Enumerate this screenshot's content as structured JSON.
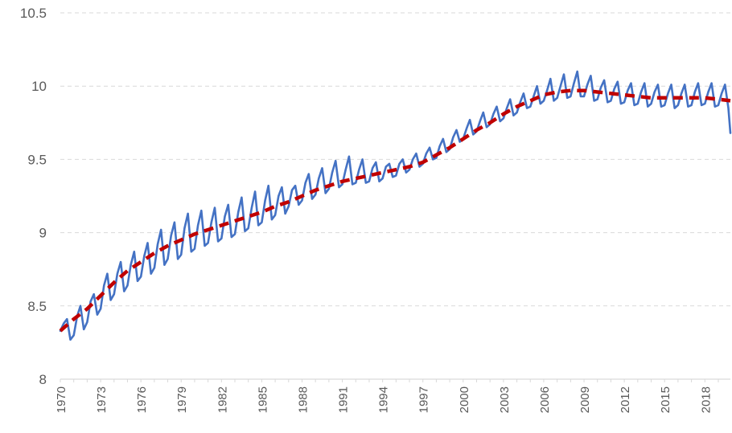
{
  "chart_data": {
    "type": "line",
    "title": "",
    "xlabel": "",
    "ylabel": "",
    "xlim": [
      1970,
      2019.9
    ],
    "ylim": [
      8,
      10.5
    ],
    "grid": "horizontal-dashed",
    "legend": "none",
    "yticks": [
      "8",
      "8.5",
      "9",
      "9.5",
      "10",
      "10.5"
    ],
    "xticks": [
      "1970",
      "1973",
      "1976",
      "1979",
      "1982",
      "1985",
      "1988",
      "1991",
      "1994",
      "1997",
      "2000",
      "2003",
      "2006",
      "2009",
      "2012",
      "2015",
      "2018"
    ],
    "series": [
      {
        "style": "solid",
        "color": "#4472C4",
        "x": [
          1970.0,
          1970.25,
          1970.5,
          1970.75,
          1971.0,
          1971.25,
          1971.5,
          1971.75,
          1972.0,
          1972.25,
          1972.5,
          1972.75,
          1973.0,
          1973.25,
          1973.5,
          1973.75,
          1974.0,
          1974.25,
          1974.5,
          1974.75,
          1975.0,
          1975.25,
          1975.5,
          1975.75,
          1976.0,
          1976.25,
          1976.5,
          1976.75,
          1977.0,
          1977.25,
          1977.5,
          1977.75,
          1978.0,
          1978.25,
          1978.5,
          1978.75,
          1979.0,
          1979.25,
          1979.5,
          1979.75,
          1980.0,
          1980.25,
          1980.5,
          1980.75,
          1981.0,
          1981.25,
          1981.5,
          1981.75,
          1982.0,
          1982.25,
          1982.5,
          1982.75,
          1983.0,
          1983.25,
          1983.5,
          1983.75,
          1984.0,
          1984.25,
          1984.5,
          1984.75,
          1985.0,
          1985.25,
          1985.5,
          1985.75,
          1986.0,
          1986.25,
          1986.5,
          1986.75,
          1987.0,
          1987.25,
          1987.5,
          1987.75,
          1988.0,
          1988.25,
          1988.5,
          1988.75,
          1989.0,
          1989.25,
          1989.5,
          1989.75,
          1990.0,
          1990.25,
          1990.5,
          1990.75,
          1991.0,
          1991.25,
          1991.5,
          1991.75,
          1992.0,
          1992.25,
          1992.5,
          1992.75,
          1993.0,
          1993.25,
          1993.5,
          1993.75,
          1994.0,
          1994.25,
          1994.5,
          1994.75,
          1995.0,
          1995.25,
          1995.5,
          1995.75,
          1996.0,
          1996.25,
          1996.5,
          1996.75,
          1997.0,
          1997.25,
          1997.5,
          1997.75,
          1998.0,
          1998.25,
          1998.5,
          1998.75,
          1999.0,
          1999.25,
          1999.5,
          1999.75,
          2000.0,
          2000.25,
          2000.5,
          2000.75,
          2001.0,
          2001.25,
          2001.5,
          2001.75,
          2002.0,
          2002.25,
          2002.5,
          2002.75,
          2003.0,
          2003.25,
          2003.5,
          2003.75,
          2004.0,
          2004.25,
          2004.5,
          2004.75,
          2005.0,
          2005.25,
          2005.5,
          2005.75,
          2006.0,
          2006.25,
          2006.5,
          2006.75,
          2007.0,
          2007.25,
          2007.5,
          2007.75,
          2008.0,
          2008.25,
          2008.5,
          2008.75,
          2009.0,
          2009.25,
          2009.5,
          2009.75,
          2010.0,
          2010.25,
          2010.5,
          2010.75,
          2011.0,
          2011.25,
          2011.5,
          2011.75,
          2012.0,
          2012.25,
          2012.5,
          2012.75,
          2013.0,
          2013.25,
          2013.5,
          2013.75,
          2014.0,
          2014.25,
          2014.5,
          2014.75,
          2015.0,
          2015.25,
          2015.5,
          2015.75,
          2016.0,
          2016.25,
          2016.5,
          2016.75,
          2017.0,
          2017.25,
          2017.5,
          2017.75,
          2018.0,
          2018.25,
          2018.5,
          2018.75,
          2019.0,
          2019.25,
          2019.5,
          2019.75,
          2019.9
        ],
        "values": [
          8.33,
          8.38,
          8.41,
          8.27,
          8.3,
          8.43,
          8.5,
          8.34,
          8.39,
          8.53,
          8.58,
          8.44,
          8.48,
          8.64,
          8.72,
          8.54,
          8.58,
          8.72,
          8.8,
          8.6,
          8.64,
          8.78,
          8.87,
          8.67,
          8.7,
          8.84,
          8.93,
          8.72,
          8.76,
          8.92,
          9.02,
          8.78,
          8.82,
          8.98,
          9.07,
          8.82,
          8.85,
          9.03,
          9.13,
          8.87,
          8.89,
          9.05,
          9.15,
          8.91,
          8.93,
          9.07,
          9.17,
          8.94,
          8.96,
          9.11,
          9.19,
          8.97,
          8.99,
          9.14,
          9.24,
          9.01,
          9.03,
          9.17,
          9.28,
          9.05,
          9.07,
          9.22,
          9.32,
          9.09,
          9.12,
          9.25,
          9.31,
          9.13,
          9.18,
          9.29,
          9.32,
          9.19,
          9.22,
          9.34,
          9.4,
          9.23,
          9.26,
          9.37,
          9.44,
          9.27,
          9.3,
          9.41,
          9.49,
          9.31,
          9.33,
          9.43,
          9.52,
          9.33,
          9.34,
          9.43,
          9.5,
          9.34,
          9.35,
          9.44,
          9.48,
          9.35,
          9.37,
          9.45,
          9.47,
          9.38,
          9.39,
          9.47,
          9.5,
          9.41,
          9.43,
          9.5,
          9.54,
          9.45,
          9.47,
          9.54,
          9.58,
          9.5,
          9.51,
          9.59,
          9.64,
          9.55,
          9.57,
          9.65,
          9.7,
          9.62,
          9.64,
          9.71,
          9.77,
          9.67,
          9.69,
          9.76,
          9.82,
          9.72,
          9.74,
          9.81,
          9.86,
          9.76,
          9.78,
          9.85,
          9.91,
          9.8,
          9.82,
          9.89,
          9.95,
          9.85,
          9.86,
          9.93,
          10.0,
          9.88,
          9.9,
          9.97,
          10.05,
          9.9,
          9.92,
          10.0,
          10.08,
          9.92,
          9.93,
          10.02,
          10.1,
          9.93,
          9.93,
          10.01,
          10.07,
          9.9,
          9.91,
          9.99,
          10.04,
          9.89,
          9.9,
          9.98,
          10.03,
          9.88,
          9.89,
          9.97,
          10.02,
          9.87,
          9.88,
          9.96,
          10.02,
          9.86,
          9.88,
          9.96,
          10.01,
          9.86,
          9.87,
          9.95,
          10.01,
          9.85,
          9.87,
          9.95,
          10.01,
          9.86,
          9.87,
          9.96,
          10.02,
          9.87,
          9.88,
          9.96,
          10.02,
          9.86,
          9.87,
          9.95,
          10.01,
          9.85,
          9.68
        ]
      },
      {
        "style": "dashed",
        "color": "#C00000",
        "x": [
          1970,
          1971,
          1972,
          1973,
          1974,
          1975,
          1976,
          1977,
          1978,
          1979,
          1980,
          1981,
          1982,
          1983,
          1984,
          1985,
          1986,
          1987,
          1988,
          1989,
          1990,
          1991,
          1992,
          1993,
          1994,
          1995,
          1996,
          1997,
          1998,
          1999,
          2000,
          2001,
          2002,
          2003,
          2004,
          2005,
          2006,
          2007,
          2008,
          2009,
          2010,
          2011,
          2012,
          2013,
          2014,
          2015,
          2016,
          2017,
          2018,
          2019,
          2019.9
        ],
        "values": [
          8.33,
          8.41,
          8.48,
          8.57,
          8.66,
          8.74,
          8.8,
          8.86,
          8.91,
          8.95,
          8.99,
          9.02,
          9.05,
          9.08,
          9.11,
          9.14,
          9.18,
          9.21,
          9.25,
          9.29,
          9.32,
          9.35,
          9.37,
          9.39,
          9.41,
          9.43,
          9.45,
          9.48,
          9.53,
          9.58,
          9.64,
          9.7,
          9.75,
          9.81,
          9.86,
          9.9,
          9.94,
          9.96,
          9.97,
          9.97,
          9.96,
          9.95,
          9.94,
          9.93,
          9.92,
          9.92,
          9.92,
          9.92,
          9.92,
          9.91,
          9.9
        ]
      }
    ]
  },
  "colors": {
    "background": "#ffffff",
    "gridline": "#d9d9d9",
    "axis": "#d9d9d9",
    "tick_text": "#595959"
  }
}
